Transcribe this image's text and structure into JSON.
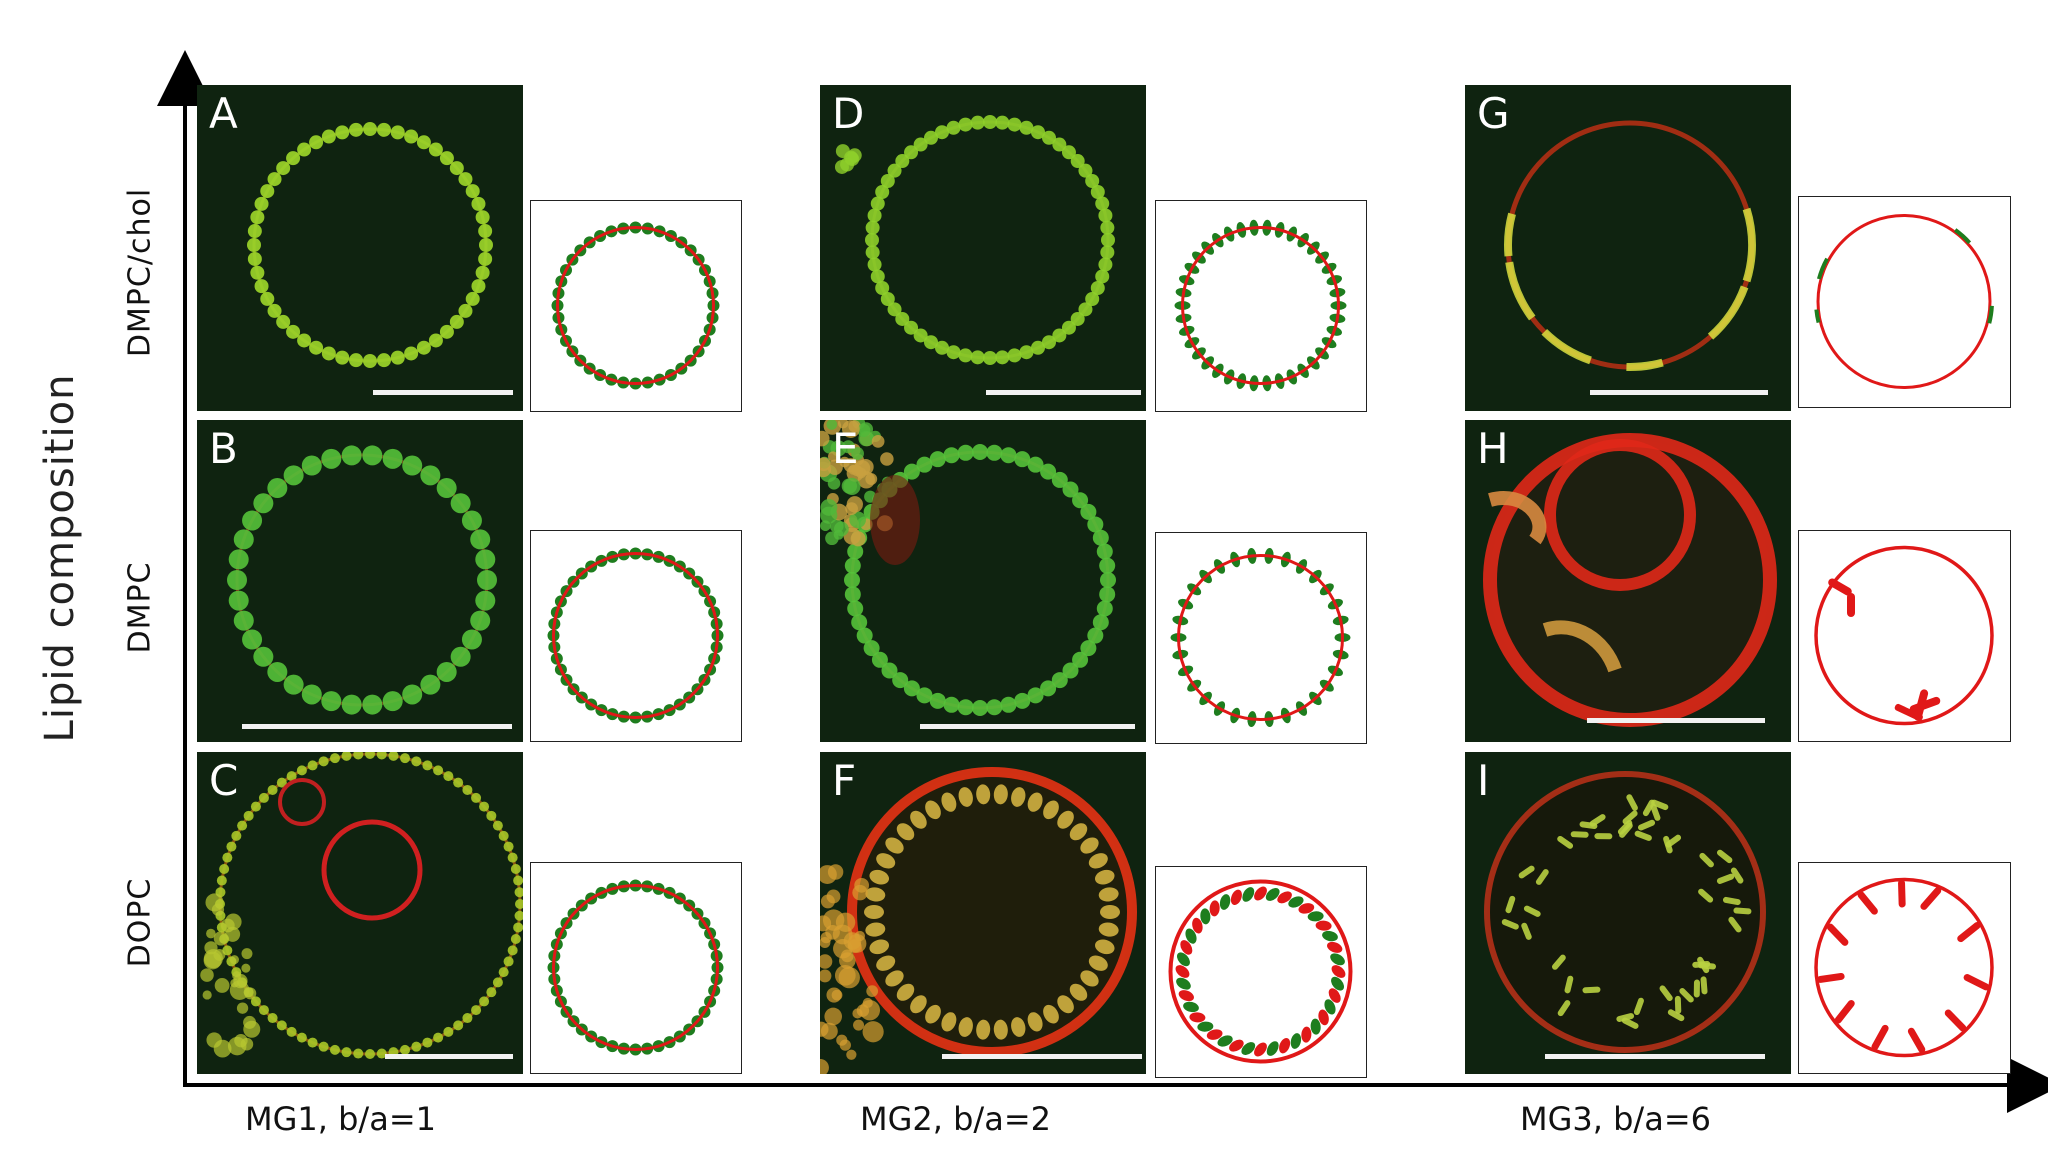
{
  "figure": {
    "y_axis_label": "Lipid composition",
    "row_labels": [
      "DMPC/chol",
      "DMPC",
      "DOPC"
    ],
    "column_labels": [
      "MG1, b/a=1",
      "MG2, b/a=2",
      "MG3, b/a=6"
    ],
    "panel_labels": [
      "A",
      "D",
      "G",
      "B",
      "E",
      "H",
      "C",
      "F",
      "I"
    ]
  },
  "colors": {
    "membrane_red": "#e01818",
    "particle_green": "#1e7d1e",
    "fluorescence_green": "#7fcf2a",
    "fluorescence_red": "#c8281e",
    "background_dark": "#0b160b"
  }
}
